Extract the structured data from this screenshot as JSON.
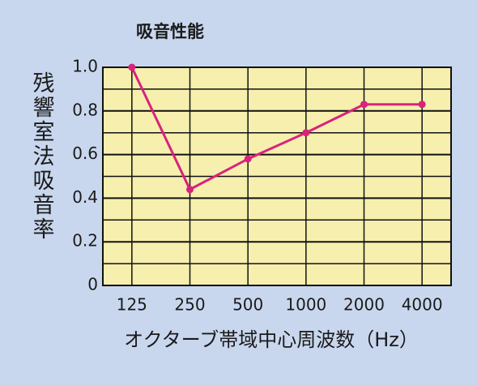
{
  "chart_data": {
    "type": "line",
    "title": "吸音性能",
    "x_label": "オクターブ帯域中心周波数（Hz）",
    "y_label": "残響室法吸音率",
    "categories": [
      "125",
      "250",
      "500",
      "1000",
      "2000",
      "4000"
    ],
    "series": [
      {
        "name": "残響室法吸音率",
        "color": "#d8237c",
        "values": [
          1.0,
          0.44,
          0.58,
          0.7,
          0.83,
          0.83
        ]
      }
    ],
    "ylim": [
      0,
      1
    ],
    "yticks": [
      0,
      0.2,
      0.4,
      0.6,
      0.8,
      {
        "value": 1,
        "label": "1.0"
      }
    ],
    "yticks_minor": [
      0.1,
      0.3,
      0.5,
      0.7,
      0.9
    ],
    "grid": true
  }
}
